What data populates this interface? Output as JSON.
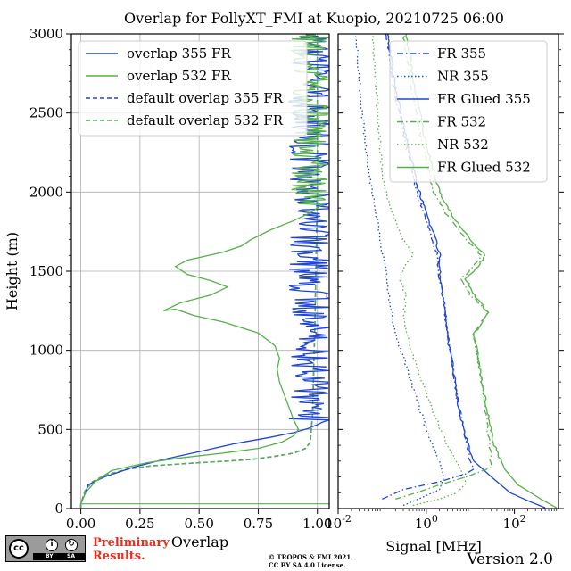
{
  "title": "Overlap for PollyXT_FMI at Kuopio, 20210725 06:00",
  "chart_data": [
    {
      "type": "line",
      "xlabel": "Overlap",
      "ylabel": "Height (m)",
      "xlim": [
        -0.04,
        1.05
      ],
      "ylim": [
        0,
        3000
      ],
      "xticks": [
        "0.00",
        "0.25",
        "0.50",
        "0.75",
        "1.00"
      ],
      "xtick_values": [
        0,
        0.25,
        0.5,
        0.75,
        1.0
      ],
      "yticks": [
        "0",
        "500",
        "1000",
        "1500",
        "2000",
        "2500",
        "3000"
      ],
      "ytick_values": [
        0,
        500,
        1000,
        1500,
        2000,
        2500,
        3000
      ],
      "grid": true,
      "legend_position": "upper-left",
      "series": [
        {
          "name": "overlap 355 FR",
          "color": "#1f45d6",
          "dash": "solid",
          "noisy_above": 1050,
          "points": [
            [
              0.0,
              5
            ],
            [
              0.0,
              30
            ],
            [
              0.02,
              100
            ],
            [
              0.03,
              150
            ],
            [
              0.1,
              200
            ],
            [
              0.22,
              260
            ],
            [
              0.35,
              310
            ],
            [
              0.5,
              360
            ],
            [
              0.65,
              410
            ],
            [
              0.8,
              450
            ],
            [
              0.9,
              480
            ],
            [
              0.96,
              505
            ],
            [
              1.0,
              530
            ],
            [
              1.02,
              545
            ],
            [
              1.05,
              560
            ]
          ]
        },
        {
          "name": "overlap 532 FR",
          "color": "#56b04a",
          "dash": "solid",
          "noisy_above": 1900,
          "points": [
            [
              0.0,
              5
            ],
            [
              0.0,
              30
            ],
            [
              0.02,
              100
            ],
            [
              0.06,
              170
            ],
            [
              0.13,
              240
            ],
            [
              0.28,
              290
            ],
            [
              0.42,
              320
            ],
            [
              0.6,
              350
            ],
            [
              0.75,
              380
            ],
            [
              0.85,
              420
            ],
            [
              0.9,
              460
            ],
            [
              0.92,
              500
            ],
            [
              0.9,
              560
            ],
            [
              0.88,
              640
            ],
            [
              0.86,
              720
            ],
            [
              0.84,
              800
            ],
            [
              0.83,
              880
            ],
            [
              0.84,
              950
            ],
            [
              0.82,
              1030
            ],
            [
              0.75,
              1110
            ],
            [
              0.6,
              1180
            ],
            [
              0.48,
              1220
            ],
            [
              0.4,
              1260
            ],
            [
              0.35,
              1250
            ],
            [
              0.42,
              1300
            ],
            [
              0.55,
              1350
            ],
            [
              0.62,
              1400
            ],
            [
              0.55,
              1440
            ],
            [
              0.45,
              1480
            ],
            [
              0.4,
              1530
            ],
            [
              0.45,
              1570
            ],
            [
              0.6,
              1620
            ],
            [
              0.68,
              1660
            ],
            [
              0.72,
              1700
            ],
            [
              0.8,
              1760
            ],
            [
              0.9,
              1820
            ],
            [
              0.97,
              1870
            ],
            [
              1.02,
              1920
            ]
          ]
        },
        {
          "name": "default overlap 355 FR",
          "color": "#1f45d6",
          "dash": "dashed",
          "points": [
            [
              0.0,
              5
            ],
            [
              0.0,
              30
            ],
            [
              0.02,
              120
            ],
            [
              0.05,
              170
            ],
            [
              0.1,
              210
            ],
            [
              0.2,
              250
            ],
            [
              0.3,
              270
            ],
            [
              0.5,
              290
            ],
            [
              0.62,
              300
            ],
            [
              0.72,
              310
            ],
            [
              0.82,
              330
            ],
            [
              0.9,
              350
            ],
            [
              0.95,
              380
            ],
            [
              0.97,
              420
            ],
            [
              0.98,
              600
            ],
            [
              0.99,
              1200
            ],
            [
              1.0,
              2000
            ],
            [
              1.0,
              3000
            ]
          ]
        },
        {
          "name": "default overlap 532 FR",
          "color": "#56b04a",
          "dash": "dashed",
          "points": [
            [
              0.0,
              5
            ],
            [
              0.0,
              30
            ],
            [
              0.02,
              120
            ],
            [
              0.05,
              170
            ],
            [
              0.1,
              210
            ],
            [
              0.2,
              250
            ],
            [
              0.3,
              270
            ],
            [
              0.5,
              290
            ],
            [
              0.62,
              300
            ],
            [
              0.72,
              310
            ],
            [
              0.82,
              330
            ],
            [
              0.9,
              350
            ],
            [
              0.95,
              380
            ],
            [
              0.97,
              420
            ],
            [
              0.98,
              600
            ],
            [
              0.99,
              1200
            ],
            [
              1.0,
              2000
            ],
            [
              1.0,
              3000
            ]
          ]
        }
      ]
    },
    {
      "type": "line",
      "xlabel": "Signal [MHz]",
      "ylabel": "",
      "xscale": "log",
      "xlim": [
        0.01,
        1000
      ],
      "ylim": [
        0,
        3000
      ],
      "xticks": [
        "10^-2",
        "10^0",
        "10^2"
      ],
      "xtick_values": [
        0.01,
        1,
        100
      ],
      "grid": false,
      "legend_position": "upper-right",
      "series": [
        {
          "name": "FR 355",
          "color": "#1f45d6",
          "dash": "dashdot",
          "points": [
            [
              0.1,
              60
            ],
            [
              0.3,
              120
            ],
            [
              2,
              170
            ],
            [
              8,
              220
            ],
            [
              12,
              250
            ],
            [
              10,
              300
            ],
            [
              7,
              500
            ],
            [
              5,
              700
            ],
            [
              4,
              900
            ],
            [
              3,
              1100
            ],
            [
              2.6,
              1300
            ],
            [
              2,
              1450
            ],
            [
              1.8,
              1600
            ],
            [
              1.2,
              1750
            ],
            [
              0.6,
              2000
            ],
            [
              0.35,
              2300
            ],
            [
              0.2,
              2600
            ],
            [
              0.12,
              3000
            ]
          ]
        },
        {
          "name": "NR 355",
          "color": "#1f45d6",
          "dash": "dotted",
          "points": [
            [
              0.3,
              20
            ],
            [
              0.8,
              70
            ],
            [
              2,
              120
            ],
            [
              2.5,
              200
            ],
            [
              2,
              300
            ],
            [
              1,
              500
            ],
            [
              0.6,
              700
            ],
            [
              0.35,
              900
            ],
            [
              0.2,
              1100
            ],
            [
              0.15,
              1300
            ],
            [
              0.12,
              1500
            ],
            [
              0.08,
              1800
            ],
            [
              0.05,
              2100
            ],
            [
              0.035,
              2500
            ],
            [
              0.025,
              3000
            ]
          ]
        },
        {
          "name": "FR Glued 355",
          "color": "#1f45d6",
          "dash": "solid",
          "points": [
            [
              500,
              5
            ],
            [
              200,
              50
            ],
            [
              80,
              100
            ],
            [
              30,
              200
            ],
            [
              12,
              300
            ],
            [
              7,
              500
            ],
            [
              5,
              700
            ],
            [
              4,
              900
            ],
            [
              3,
              1100
            ],
            [
              2.6,
              1300
            ],
            [
              2,
              1450
            ],
            [
              2.1,
              1600
            ],
            [
              1.4,
              1750
            ],
            [
              0.7,
              2000
            ],
            [
              0.38,
              2300
            ],
            [
              0.22,
              2600
            ],
            [
              0.13,
              3000
            ]
          ]
        },
        {
          "name": "FR 532",
          "color": "#56b04a",
          "dash": "dashdot",
          "points": [
            [
              0.2,
              60
            ],
            [
              0.6,
              100
            ],
            [
              2,
              150
            ],
            [
              8,
              200
            ],
            [
              30,
              260
            ],
            [
              28,
              400
            ],
            [
              22,
              600
            ],
            [
              18,
              800
            ],
            [
              14,
              1000
            ],
            [
              12,
              1100
            ],
            [
              25,
              1240
            ],
            [
              10,
              1350
            ],
            [
              6,
              1450
            ],
            [
              12,
              1530
            ],
            [
              18,
              1600
            ],
            [
              8,
              1700
            ],
            [
              3,
              1850
            ],
            [
              1.5,
              2000
            ],
            [
              0.8,
              2300
            ],
            [
              0.5,
              2600
            ],
            [
              0.3,
              3000
            ]
          ]
        },
        {
          "name": "NR 532",
          "color": "#56b04a",
          "dash": "dotted",
          "points": [
            [
              0.5,
              20
            ],
            [
              2,
              60
            ],
            [
              5,
              100
            ],
            [
              8,
              160
            ],
            [
              6,
              250
            ],
            [
              3,
              400
            ],
            [
              1.5,
              600
            ],
            [
              0.8,
              800
            ],
            [
              0.45,
              1000
            ],
            [
              0.3,
              1200
            ],
            [
              0.35,
              1350
            ],
            [
              0.25,
              1450
            ],
            [
              0.35,
              1550
            ],
            [
              0.5,
              1600
            ],
            [
              0.3,
              1700
            ],
            [
              0.15,
              1900
            ],
            [
              0.1,
              2100
            ],
            [
              0.08,
              2500
            ],
            [
              0.06,
              3000
            ]
          ]
        },
        {
          "name": "FR Glued 532",
          "color": "#56b04a",
          "dash": "solid",
          "points": [
            [
              900,
              5
            ],
            [
              400,
              60
            ],
            [
              120,
              150
            ],
            [
              60,
              250
            ],
            [
              35,
              400
            ],
            [
              25,
              600
            ],
            [
              18,
              800
            ],
            [
              14,
              1000
            ],
            [
              12,
              1100
            ],
            [
              25,
              1240
            ],
            [
              12,
              1350
            ],
            [
              8,
              1450
            ],
            [
              15,
              1530
            ],
            [
              22,
              1600
            ],
            [
              10,
              1700
            ],
            [
              4,
              1850
            ],
            [
              2,
              2000
            ],
            [
              1,
              2300
            ],
            [
              0.6,
              2600
            ],
            [
              0.35,
              3000
            ]
          ]
        }
      ]
    }
  ],
  "footer": {
    "cc_badge": "cc BY SA",
    "preliminary_line1": "Preliminary",
    "preliminary_line2": "Results.",
    "copyright_line1": "© TROPOS & FMI 2021.",
    "copyright_line2": "CC BY SA 4.0 License.",
    "version": "Version 2.0"
  }
}
